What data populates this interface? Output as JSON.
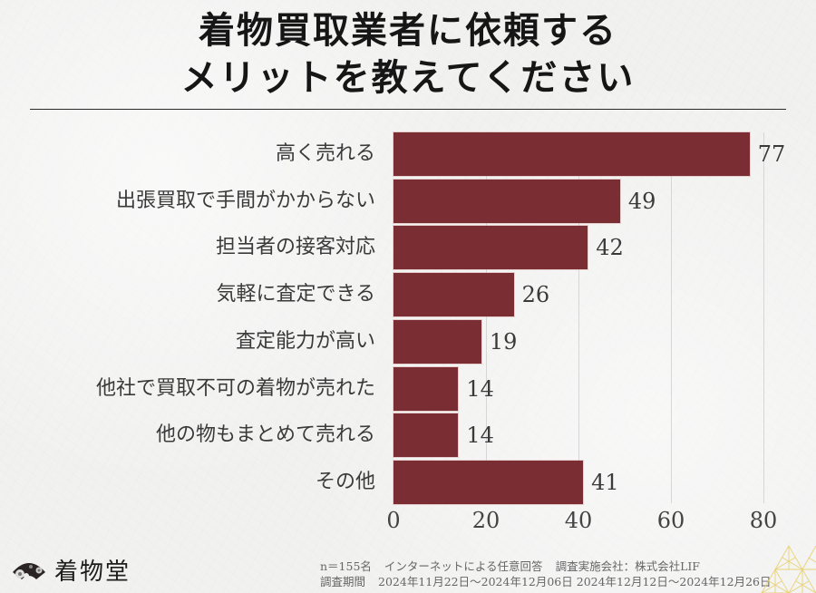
{
  "header": {
    "title_line1": "着物買取業者に依頼する",
    "title_line2": "メリットを教えてください"
  },
  "chart_data": {
    "type": "bar",
    "orientation": "horizontal",
    "title": "着物買取業者に依頼するメリットを教えてください",
    "categories": [
      "高く売れる",
      "出張買取で手間がかからない",
      "担当者の接客対応",
      "気軽に査定できる",
      "査定能力が高い",
      "他社で買取不可の着物が売れた",
      "他の物もまとめて売れる",
      "その他"
    ],
    "values": [
      77,
      49,
      42,
      26,
      19,
      14,
      14,
      41
    ],
    "xlabel": "",
    "ylabel": "",
    "xlim": [
      0,
      80
    ],
    "xticks": [
      "0",
      "20",
      "40",
      "60",
      "80"
    ],
    "grid": true,
    "legend": "none",
    "bar_color": "#7a2e34",
    "data_labels": true
  },
  "footer": {
    "logo_text": "着物堂",
    "logo_icon": "fan-icon",
    "note_line1": {
      "sample": "n＝155名",
      "method": "インターネットによる任意回答",
      "company": "調査実施会社：株式会社LIF"
    },
    "note_line2": {
      "period_label": "調査期間",
      "period1": "2024年11月22日～2024年12月06日",
      "period2": "2024年12月12日～2024年12月26日"
    }
  },
  "colors": {
    "bar": "#7a2e34",
    "background": "#f1f1f0",
    "title": "#161616",
    "text": "#3a3a3a",
    "accent_gold": "#e8cf6a"
  }
}
